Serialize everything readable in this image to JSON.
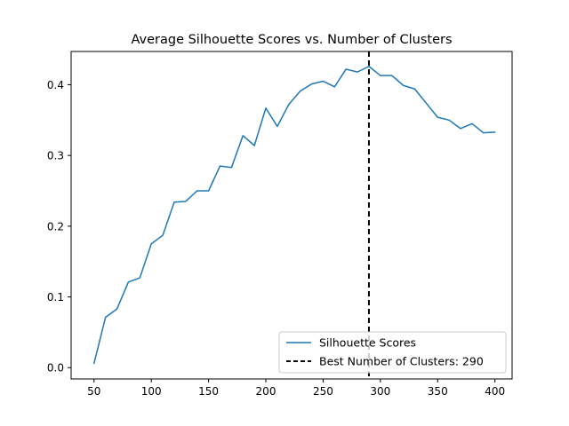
{
  "chart_data": {
    "type": "line",
    "title": "Average Silhouette Scores vs. Number of Clusters",
    "xlabel": "",
    "ylabel": "",
    "xlim": [
      30,
      415
    ],
    "ylim": [
      -0.016,
      0.447
    ],
    "xticks": [
      50,
      100,
      150,
      200,
      250,
      300,
      350,
      400
    ],
    "xtick_labels": [
      "50",
      "100",
      "150",
      "200",
      "250",
      "300",
      "350",
      "400"
    ],
    "yticks": [
      0.0,
      0.1,
      0.2,
      0.3,
      0.4
    ],
    "ytick_labels": [
      "0.0",
      "0.1",
      "0.2",
      "0.3",
      "0.4"
    ],
    "grid": false,
    "legend_position": "lower-right",
    "series": [
      {
        "name": "Silhouette Scores",
        "color": "#1f77b4",
        "style": "solid",
        "x": [
          50,
          60,
          70,
          80,
          90,
          100,
          110,
          120,
          130,
          140,
          150,
          160,
          170,
          180,
          190,
          200,
          210,
          220,
          230,
          240,
          250,
          260,
          270,
          280,
          290,
          300,
          310,
          320,
          330,
          340,
          350,
          360,
          370,
          380,
          390,
          400
        ],
        "y": [
          0.006,
          0.071,
          0.083,
          0.121,
          0.127,
          0.175,
          0.187,
          0.234,
          0.235,
          0.25,
          0.25,
          0.285,
          0.283,
          0.328,
          0.314,
          0.367,
          0.341,
          0.372,
          0.391,
          0.401,
          0.405,
          0.397,
          0.422,
          0.418,
          0.426,
          0.413,
          0.413,
          0.399,
          0.394,
          0.374,
          0.354,
          0.35,
          0.338,
          0.345,
          0.332,
          0.333
        ]
      }
    ],
    "vlines": [
      {
        "name": "Best Number of Clusters: 290",
        "x": 290,
        "color": "#000000",
        "style": "dashed"
      }
    ]
  }
}
